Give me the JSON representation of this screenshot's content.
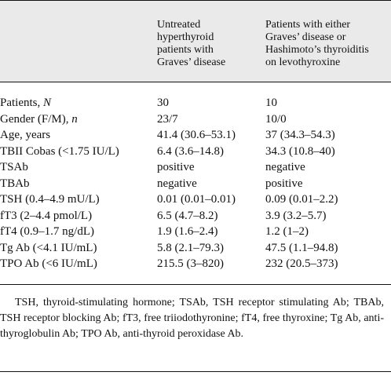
{
  "header": {
    "col1": "Untreated\nhyperthyroid\npatients with\nGraves’ disease",
    "col2": "Patients with either\nGraves’ disease or\nHashimoto’s thyroiditis\non levothyroxine"
  },
  "rows": [
    {
      "label": "Patients, ",
      "label_italic": "N",
      "v1": "30",
      "v2": "10"
    },
    {
      "label": "Gender (F/M), ",
      "label_italic": "n",
      "v1": "23/7",
      "v2": "10/0"
    },
    {
      "label": "Age, years",
      "label_italic": "",
      "v1": "41.4 (30.6–53.1)",
      "v2": "37 (34.3–54.3)"
    },
    {
      "label": "TBII Cobas (<1.75 IU/L)",
      "label_italic": "",
      "v1": "6.4 (3.6–14.8)",
      "v2": "34.3 (10.8–40)"
    },
    {
      "label": "TSAb",
      "label_italic": "",
      "v1": "positive",
      "v2": "negative"
    },
    {
      "label": "TBAb",
      "label_italic": "",
      "v1": "negative",
      "v2": "positive"
    },
    {
      "label": "TSH (0.4–4.9 mU/L)",
      "label_italic": "",
      "v1": "0.01 (0.01–0.01)",
      "v2": "0.09 (0.01–2.2)"
    },
    {
      "label": "fT3 (2–4.4 pmol/L)",
      "label_italic": "",
      "v1": "6.5 (4.7–8.2)",
      "v2": "3.9 (3.2–5.7)"
    },
    {
      "label": "fT4 (0.9–1.7 ng/dL)",
      "label_italic": "",
      "v1": "1.9 (1.6–2.4)",
      "v2": "1.2 (1–2)"
    },
    {
      "label": "Tg Ab (<4.1 IU/mL)",
      "label_italic": "",
      "v1": "5.8 (2.1–79.3)",
      "v2": "47.5 (1.1–94.8)"
    },
    {
      "label": "TPO Ab (<6 IU/mL)",
      "label_italic": "",
      "v1": "215.5 (3–820)",
      "v2": "232 (20.5–373)"
    }
  ],
  "footnote": "TSH, thyroid-stimulating hormone; TSAb, TSH receptor stimulating Ab; TBAb, TSH receptor blocking Ab; fT3, free triiodothyronine; fT4, free thyroxine; Tg Ab, anti-thyroglobulin Ab; TPO Ab, anti-thyroid peroxidase Ab."
}
